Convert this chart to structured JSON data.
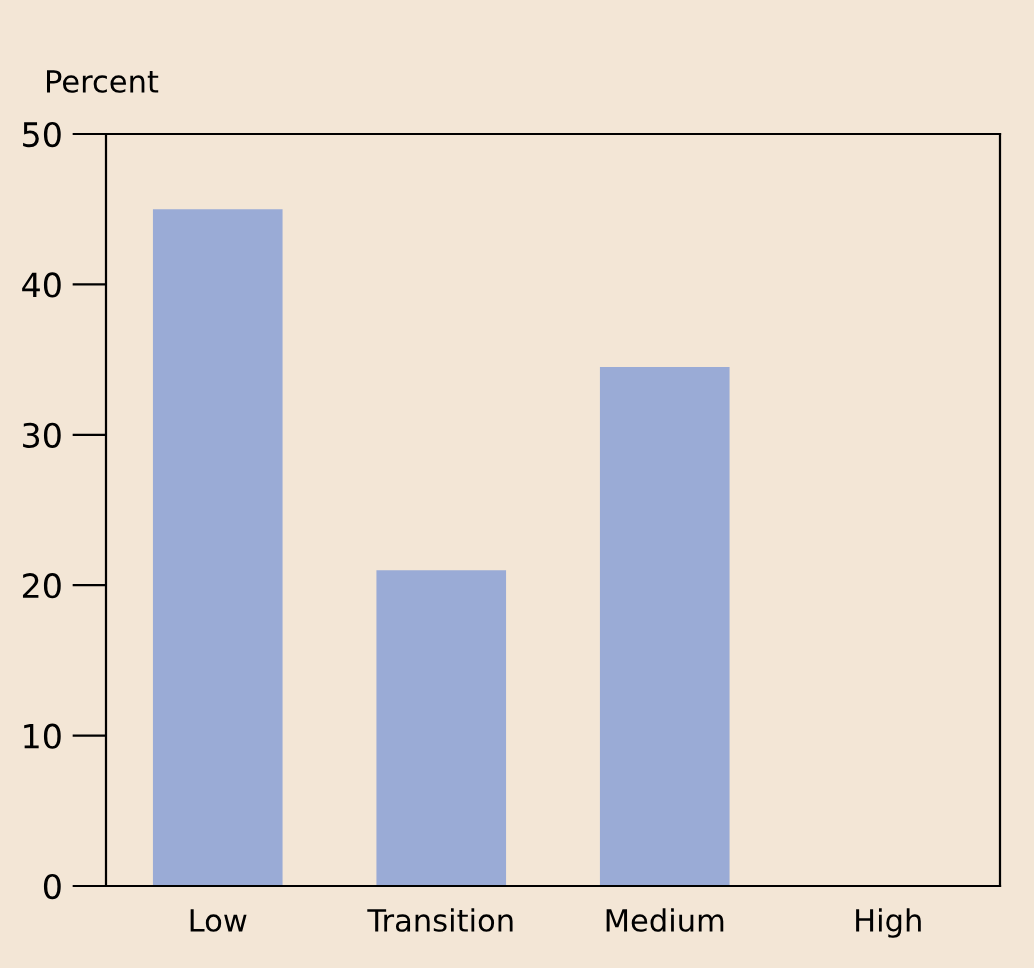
{
  "chart_data": {
    "type": "bar",
    "ylabel": "Percent",
    "categories": [
      "Low",
      "Transition",
      "Medium",
      "High"
    ],
    "values": [
      45,
      21,
      34.5,
      0
    ],
    "color": "#9aabd6",
    "ylim": [
      0,
      50
    ],
    "yticks": [
      0,
      10,
      20,
      30,
      40,
      50
    ],
    "grid": false
  }
}
